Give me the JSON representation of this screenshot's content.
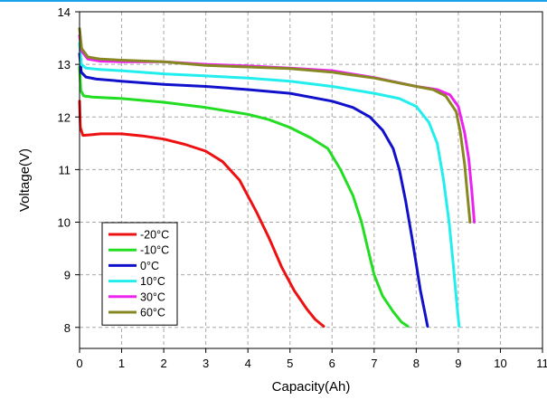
{
  "chart_data": {
    "type": "line",
    "title": "",
    "xlabel": "Capacity(Ah)",
    "ylabel": "Voltage(V)",
    "xlim": [
      0,
      11
    ],
    "ylim": [
      7.6,
      14
    ],
    "xticks": [
      0,
      1,
      2,
      3,
      4,
      5,
      6,
      7,
      8,
      9,
      10,
      11
    ],
    "xtick_labels": [
      "0",
      "1",
      "2",
      "3",
      "4",
      "5",
      "6",
      "7",
      "8",
      "9",
      "10",
      "11"
    ],
    "yticks": [
      8,
      9,
      10,
      11,
      12,
      13,
      14
    ],
    "ytick_labels": [
      "8",
      "9",
      "10",
      "11",
      "12",
      "13",
      "14"
    ],
    "grid": true,
    "legend_position": "bottom-left",
    "top_rule_color": "#1aa3e8",
    "series": [
      {
        "name": "-20°C",
        "color": "#ee1111",
        "points": [
          [
            0.0,
            12.3
          ],
          [
            0.02,
            11.8
          ],
          [
            0.08,
            11.65
          ],
          [
            0.25,
            11.66
          ],
          [
            0.5,
            11.68
          ],
          [
            1.0,
            11.68
          ],
          [
            1.5,
            11.64
          ],
          [
            2.0,
            11.58
          ],
          [
            2.5,
            11.48
          ],
          [
            3.0,
            11.35
          ],
          [
            3.4,
            11.15
          ],
          [
            3.8,
            10.8
          ],
          [
            4.2,
            10.2
          ],
          [
            4.5,
            9.7
          ],
          [
            4.8,
            9.15
          ],
          [
            5.1,
            8.7
          ],
          [
            5.4,
            8.35
          ],
          [
            5.6,
            8.15
          ],
          [
            5.8,
            8.02
          ]
        ]
      },
      {
        "name": "-10°C",
        "color": "#22dd22",
        "points": [
          [
            0.0,
            12.95
          ],
          [
            0.03,
            12.5
          ],
          [
            0.1,
            12.4
          ],
          [
            0.3,
            12.38
          ],
          [
            0.5,
            12.37
          ],
          [
            1.0,
            12.35
          ],
          [
            2.0,
            12.28
          ],
          [
            3.0,
            12.18
          ],
          [
            4.0,
            12.05
          ],
          [
            4.5,
            11.95
          ],
          [
            5.0,
            11.8
          ],
          [
            5.5,
            11.6
          ],
          [
            5.9,
            11.4
          ],
          [
            6.2,
            11.0
          ],
          [
            6.5,
            10.5
          ],
          [
            6.7,
            10.0
          ],
          [
            6.85,
            9.5
          ],
          [
            7.0,
            9.0
          ],
          [
            7.2,
            8.6
          ],
          [
            7.45,
            8.3
          ],
          [
            7.65,
            8.1
          ],
          [
            7.8,
            8.02
          ]
        ]
      },
      {
        "name": "0°C",
        "color": "#1111cc",
        "points": [
          [
            0.0,
            13.2
          ],
          [
            0.04,
            12.85
          ],
          [
            0.15,
            12.76
          ],
          [
            0.4,
            12.72
          ],
          [
            1.0,
            12.68
          ],
          [
            2.0,
            12.62
          ],
          [
            3.0,
            12.58
          ],
          [
            4.0,
            12.52
          ],
          [
            5.0,
            12.45
          ],
          [
            6.0,
            12.3
          ],
          [
            6.5,
            12.18
          ],
          [
            6.9,
            12.0
          ],
          [
            7.2,
            11.75
          ],
          [
            7.45,
            11.4
          ],
          [
            7.6,
            11.0
          ],
          [
            7.75,
            10.4
          ],
          [
            7.9,
            9.7
          ],
          [
            8.0,
            9.2
          ],
          [
            8.1,
            8.7
          ],
          [
            8.2,
            8.3
          ],
          [
            8.27,
            8.02
          ]
        ]
      },
      {
        "name": "10°C",
        "color": "#22eeee",
        "points": [
          [
            0.0,
            13.4
          ],
          [
            0.04,
            13.0
          ],
          [
            0.15,
            12.93
          ],
          [
            0.5,
            12.9
          ],
          [
            1.0,
            12.88
          ],
          [
            2.0,
            12.82
          ],
          [
            3.0,
            12.78
          ],
          [
            4.0,
            12.74
          ],
          [
            5.0,
            12.68
          ],
          [
            6.0,
            12.58
          ],
          [
            7.0,
            12.45
          ],
          [
            7.6,
            12.35
          ],
          [
            8.0,
            12.2
          ],
          [
            8.3,
            11.9
          ],
          [
            8.5,
            11.5
          ],
          [
            8.65,
            10.8
          ],
          [
            8.78,
            10.0
          ],
          [
            8.88,
            9.2
          ],
          [
            8.96,
            8.5
          ],
          [
            9.02,
            8.02
          ]
        ]
      },
      {
        "name": "30°C",
        "color": "#ee22ee",
        "points": [
          [
            0.0,
            13.55
          ],
          [
            0.05,
            13.25
          ],
          [
            0.2,
            13.1
          ],
          [
            0.5,
            13.06
          ],
          [
            1.0,
            13.05
          ],
          [
            2.0,
            13.05
          ],
          [
            3.0,
            13.0
          ],
          [
            4.0,
            12.97
          ],
          [
            5.0,
            12.93
          ],
          [
            6.0,
            12.88
          ],
          [
            7.0,
            12.75
          ],
          [
            8.0,
            12.58
          ],
          [
            8.5,
            12.52
          ],
          [
            8.8,
            12.42
          ],
          [
            9.0,
            12.2
          ],
          [
            9.15,
            11.7
          ],
          [
            9.25,
            11.2
          ],
          [
            9.32,
            10.6
          ],
          [
            9.38,
            10.0
          ]
        ]
      },
      {
        "name": "60°C",
        "color": "#888822",
        "points": [
          [
            0.0,
            13.68
          ],
          [
            0.05,
            13.3
          ],
          [
            0.2,
            13.14
          ],
          [
            0.5,
            13.1
          ],
          [
            1.0,
            13.08
          ],
          [
            2.0,
            13.05
          ],
          [
            3.0,
            12.98
          ],
          [
            4.0,
            12.95
          ],
          [
            5.0,
            12.92
          ],
          [
            6.0,
            12.85
          ],
          [
            7.0,
            12.74
          ],
          [
            8.0,
            12.58
          ],
          [
            8.4,
            12.52
          ],
          [
            8.7,
            12.4
          ],
          [
            8.95,
            12.1
          ],
          [
            9.05,
            11.7
          ],
          [
            9.15,
            11.1
          ],
          [
            9.22,
            10.5
          ],
          [
            9.28,
            10.0
          ]
        ]
      }
    ]
  }
}
